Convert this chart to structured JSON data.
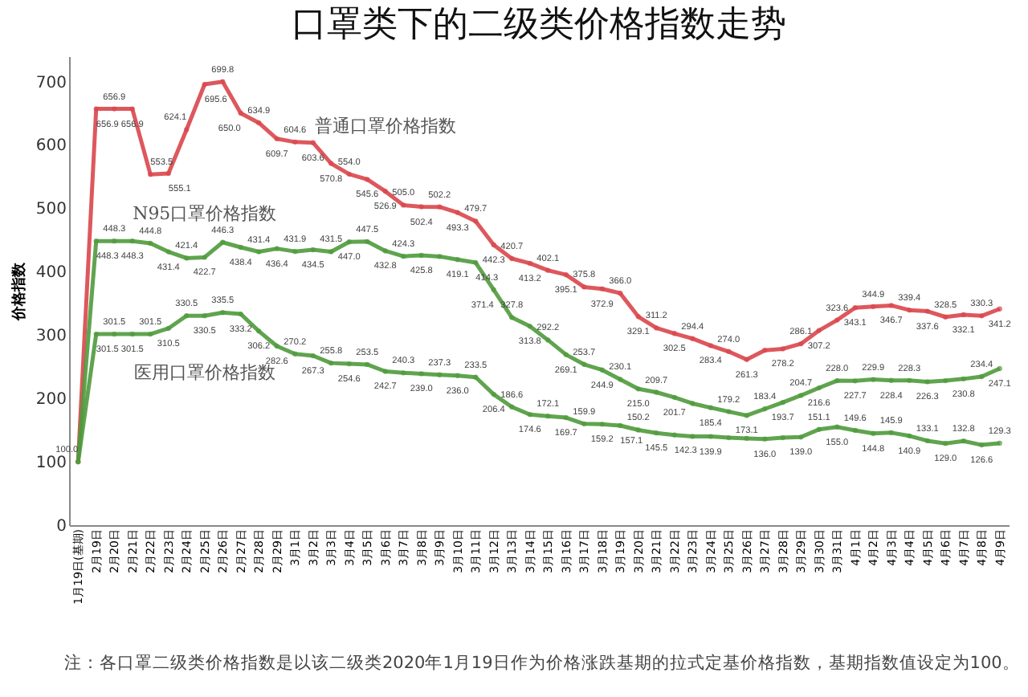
{
  "chart_data": {
    "type": "line",
    "title": "口罩类下的二级类价格指数走势",
    "ylabel": "价格指数",
    "categories": [
      "1月19日(基期)",
      "2月19日",
      "2月20日",
      "2月21日",
      "2月22日",
      "2月23日",
      "2月24日",
      "2月25日",
      "2月26日",
      "2月27日",
      "2月28日",
      "2月29日",
      "3月1日",
      "3月2日",
      "3月3日",
      "3月4日",
      "3月5日",
      "3月6日",
      "3月7日",
      "3月8日",
      "3月9日",
      "3月10日",
      "3月11日",
      "3月12日",
      "3月13日",
      "3月14日",
      "3月15日",
      "3月16日",
      "3月17日",
      "3月18日",
      "3月19日",
      "3月20日",
      "3月21日",
      "3月22日",
      "3月23日",
      "3月24日",
      "3月25日",
      "3月26日",
      "3月27日",
      "3月28日",
      "3月29日",
      "3月30日",
      "3月31日",
      "4月1日",
      "4月2日",
      "4月3日",
      "4月4日",
      "4月5日",
      "4月6日",
      "4月7日",
      "4月8日",
      "4月9日"
    ],
    "series": [
      {
        "name": "普通口罩价格指数",
        "color": "#d9464b",
        "values": [
          100.0,
          656.9,
          656.9,
          656.9,
          553.5,
          555.1,
          624.1,
          695.6,
          699.8,
          650.0,
          634.9,
          609.7,
          604.6,
          603.6,
          570.8,
          554.0,
          545.6,
          526.9,
          505.0,
          502.4,
          502.2,
          493.3,
          479.7,
          442.3,
          420.7,
          413.2,
          402.1,
          395.1,
          375.8,
          372.9,
          366.0,
          329.1,
          311.2,
          302.5,
          294.4,
          283.4,
          274.0,
          261.3,
          276,
          278.2,
          286.1,
          307.2,
          323.6,
          343.1,
          344.9,
          346.7,
          339.4,
          337.6,
          328.5,
          332.1,
          330.3,
          341.2
        ],
        "value_labels": [
          "100.0",
          "656.9",
          "656.9",
          "656.9",
          "553.5",
          "555.1",
          "624.1",
          "695.6",
          "699.8",
          "650.0",
          "634.9",
          "609.7",
          "604.6",
          "603.6",
          "570.8",
          "554.0",
          "545.6",
          "526.9",
          "505.0",
          "502.4",
          "502.2",
          "493.3",
          "479.7",
          "442.3",
          "420.7",
          "413.2",
          "402.1",
          "395.1",
          "375.8",
          "372.9",
          "366.0",
          "329.1",
          "311.2",
          "302.5",
          "294.4",
          "283.4",
          "274.0",
          "261.3",
          null,
          "278.2",
          "286.1",
          "307.2",
          "323.6",
          "343.1",
          "344.9",
          "346.7",
          "339.4",
          "337.6",
          "328.5",
          "332.1",
          "330.3",
          "341.2"
        ]
      },
      {
        "name": "N95口罩价格指数",
        "color": "#4f9a3c",
        "values": [
          100.0,
          448.3,
          448.3,
          448.3,
          444.8,
          431.4,
          421.4,
          422.7,
          446.3,
          438.4,
          431.4,
          436.4,
          431.9,
          434.5,
          431.5,
          447.0,
          447.5,
          432.8,
          424.3,
          425.8,
          424,
          419.1,
          414.3,
          371.4,
          327.8,
          313.8,
          292.2,
          269.1,
          253.7,
          244.9,
          230.1,
          215.0,
          209.7,
          201.7,
          192,
          185.4,
          179.2,
          173.1,
          183.4,
          193.7,
          204.7,
          216.6,
          228.0,
          227.7,
          229.9,
          228.4,
          228.3,
          226.3,
          228,
          230.8,
          234.4,
          247.1
        ],
        "value_labels": [
          null,
          "448.3",
          "448.3",
          "448.3",
          "444.8",
          "431.4",
          "421.4",
          "422.7",
          "446.3",
          "438.4",
          "431.4",
          "436.4",
          "431.9",
          "434.5",
          "431.5",
          "447.0",
          "447.5",
          "432.8",
          "424.3",
          "425.8",
          null,
          "419.1",
          "414.3",
          "371.4",
          "327.8",
          "313.8",
          "292.2",
          "269.1",
          "253.7",
          "244.9",
          "230.1",
          "215.0",
          "209.7",
          "201.7",
          null,
          "185.4",
          "179.2",
          "173.1",
          "183.4",
          "193.7",
          "204.7",
          "216.6",
          "228.0",
          "227.7",
          "229.9",
          "228.4",
          "228.3",
          "226.3",
          null,
          "230.8",
          "234.4",
          "247.1"
        ]
      },
      {
        "name": "医用口罩价格指数",
        "color": "#4f9a3c",
        "values": [
          100.0,
          301.5,
          301.5,
          301.5,
          301.5,
          310.5,
          330.5,
          330.5,
          335.5,
          333.2,
          306.2,
          282.6,
          270.2,
          267.3,
          255.8,
          254.6,
          253.5,
          242.7,
          240.3,
          239.0,
          237.3,
          236.0,
          233.5,
          206.4,
          186.6,
          174.6,
          172.1,
          169.7,
          159.9,
          159.2,
          157.1,
          150.2,
          145.5,
          142.3,
          140,
          139.9,
          138,
          137,
          136.0,
          138,
          139.0,
          151.1,
          155.0,
          149.6,
          144.8,
          145.9,
          140.9,
          133.1,
          129.0,
          132.8,
          126.6,
          129.3
        ],
        "value_labels": [
          null,
          "301.5",
          "301.5",
          "301.5",
          "301.5",
          "310.5",
          "330.5",
          "330.5",
          "335.5",
          "333.2",
          "306.2",
          "282.6",
          "270.2",
          "267.3",
          "255.8",
          "254.6",
          "253.5",
          "242.7",
          "240.3",
          "239.0",
          "237.3",
          "236.0",
          "233.5",
          "206.4",
          "186.6",
          "174.6",
          "172.1",
          "169.7",
          "159.9",
          "159.2",
          "157.1",
          "150.2",
          "145.5",
          "142.3",
          null,
          "139.9",
          null,
          null,
          "136.0",
          null,
          "139.0",
          "151.1",
          "155.0",
          "149.6",
          "144.8",
          "145.9",
          "140.9",
          "133.1",
          "129.0",
          "132.8",
          "126.6",
          "129.3"
        ]
      }
    ],
    "ylim": [
      0,
      740
    ],
    "yticks": [
      0,
      100,
      200,
      300,
      400,
      500,
      600,
      700
    ],
    "grid": false,
    "legend": false,
    "marker": "circle",
    "line_style": "solid",
    "annotations": [
      "注：各口罩二级类价格指数是以该二级类2020年1月19日作为价格涨跌基期的拉式定基价格指数，基期指数值设定为100。"
    ]
  }
}
